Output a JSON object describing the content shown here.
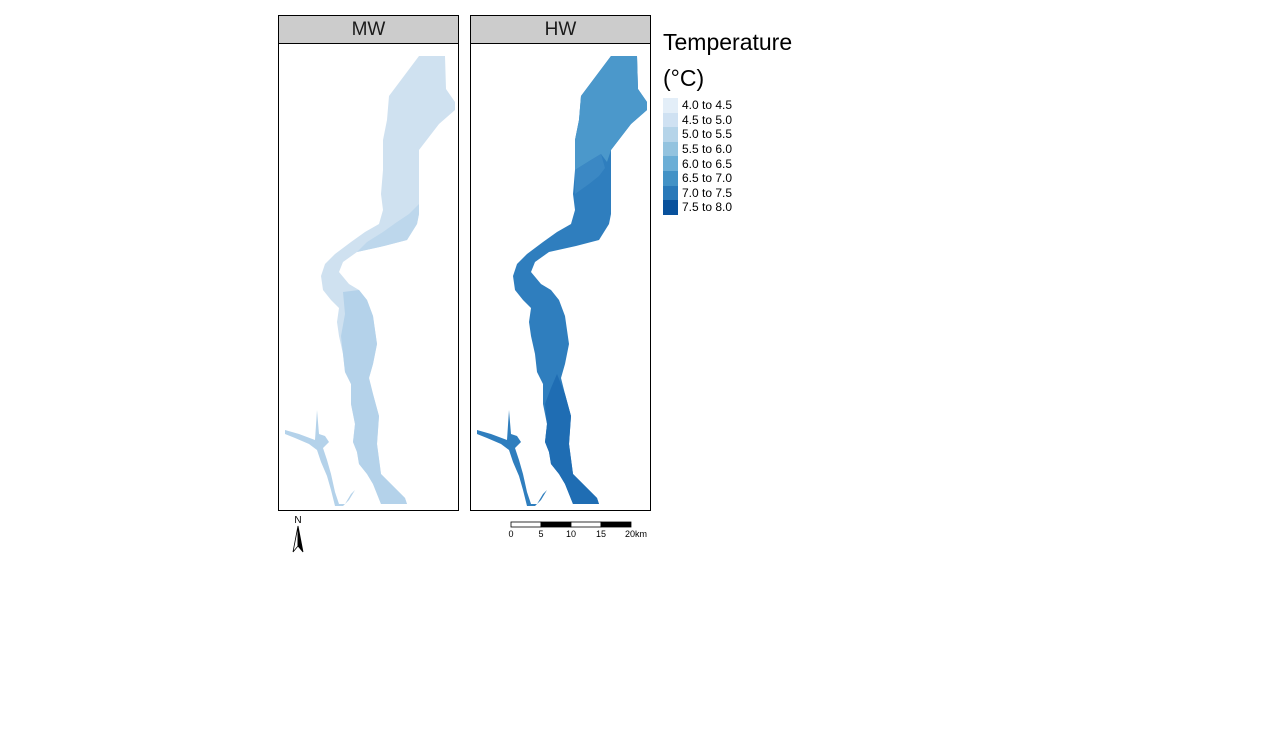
{
  "panels": [
    {
      "label": "MW",
      "palette": {
        "main": "#cfe1f0",
        "mid": "#bdd7ec",
        "low": "#b4d2ea",
        "edge": "#dbe9f6"
      }
    },
    {
      "label": "HW",
      "palette": {
        "main": "#2f7ebe",
        "mid": "#4b98cb",
        "low": "#1f6db3",
        "edge": "#3b88c4"
      }
    }
  ],
  "legend": {
    "title": "Temperature (°C)",
    "items": [
      {
        "label": "4.0 to 4.5",
        "color": "#e3eef8"
      },
      {
        "label": "4.5 to 5.0",
        "color": "#cfe1f2"
      },
      {
        "label": "5.0 to 5.5",
        "color": "#b5d4e9"
      },
      {
        "label": "5.5 to 6.0",
        "color": "#93c3df"
      },
      {
        "label": "6.0 to 6.5",
        "color": "#6baed6"
      },
      {
        "label": "6.5 to 7.0",
        "color": "#4292c6"
      },
      {
        "label": "7.0 to 7.5",
        "color": "#2979b9"
      },
      {
        "label": "7.5 to 8.0",
        "color": "#08519c"
      }
    ]
  },
  "north_arrow": {
    "label": "N"
  },
  "scale_bar": {
    "ticks": [
      "0",
      "5",
      "10",
      "15",
      "20km"
    ]
  }
}
